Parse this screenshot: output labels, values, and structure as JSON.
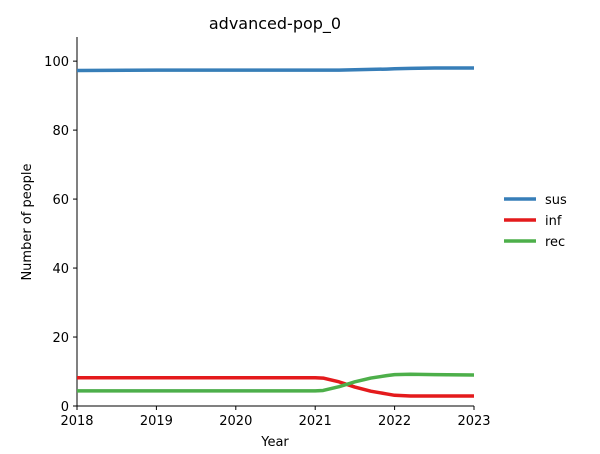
{
  "chart_data": {
    "type": "line",
    "title": "advanced-pop_0",
    "xlabel": "Year",
    "ylabel": "Number of people",
    "xlim": [
      2018,
      2023
    ],
    "ylim": [
      0,
      107
    ],
    "x_ticks": [
      "2018",
      "2019",
      "2020",
      "2021",
      "2022",
      "2023"
    ],
    "y_ticks": [
      "0",
      "20",
      "40",
      "60",
      "80",
      "100"
    ],
    "x": [
      2018,
      2019,
      2020,
      2021,
      2021.1,
      2021.3,
      2021.5,
      2021.7,
      2021.9,
      2022,
      2022.2,
      2022.5,
      2023
    ],
    "series": [
      {
        "name": "sus",
        "color": "#377eb8",
        "values": [
          97.3,
          97.4,
          97.4,
          97.4,
          97.4,
          97.4,
          97.5,
          97.6,
          97.7,
          97.8,
          97.9,
          98.0,
          98.0
        ]
      },
      {
        "name": "inf",
        "color": "#e41a1c",
        "values": [
          8.2,
          8.2,
          8.2,
          8.2,
          8.1,
          7.0,
          5.5,
          4.3,
          3.5,
          3.1,
          2.9,
          2.9,
          2.9
        ]
      },
      {
        "name": "rec",
        "color": "#4daf4a",
        "values": [
          4.4,
          4.4,
          4.4,
          4.4,
          4.5,
          5.6,
          7.0,
          8.1,
          8.8,
          9.1,
          9.2,
          9.1,
          9.0
        ]
      }
    ],
    "legend_position": "right",
    "grid": false
  }
}
